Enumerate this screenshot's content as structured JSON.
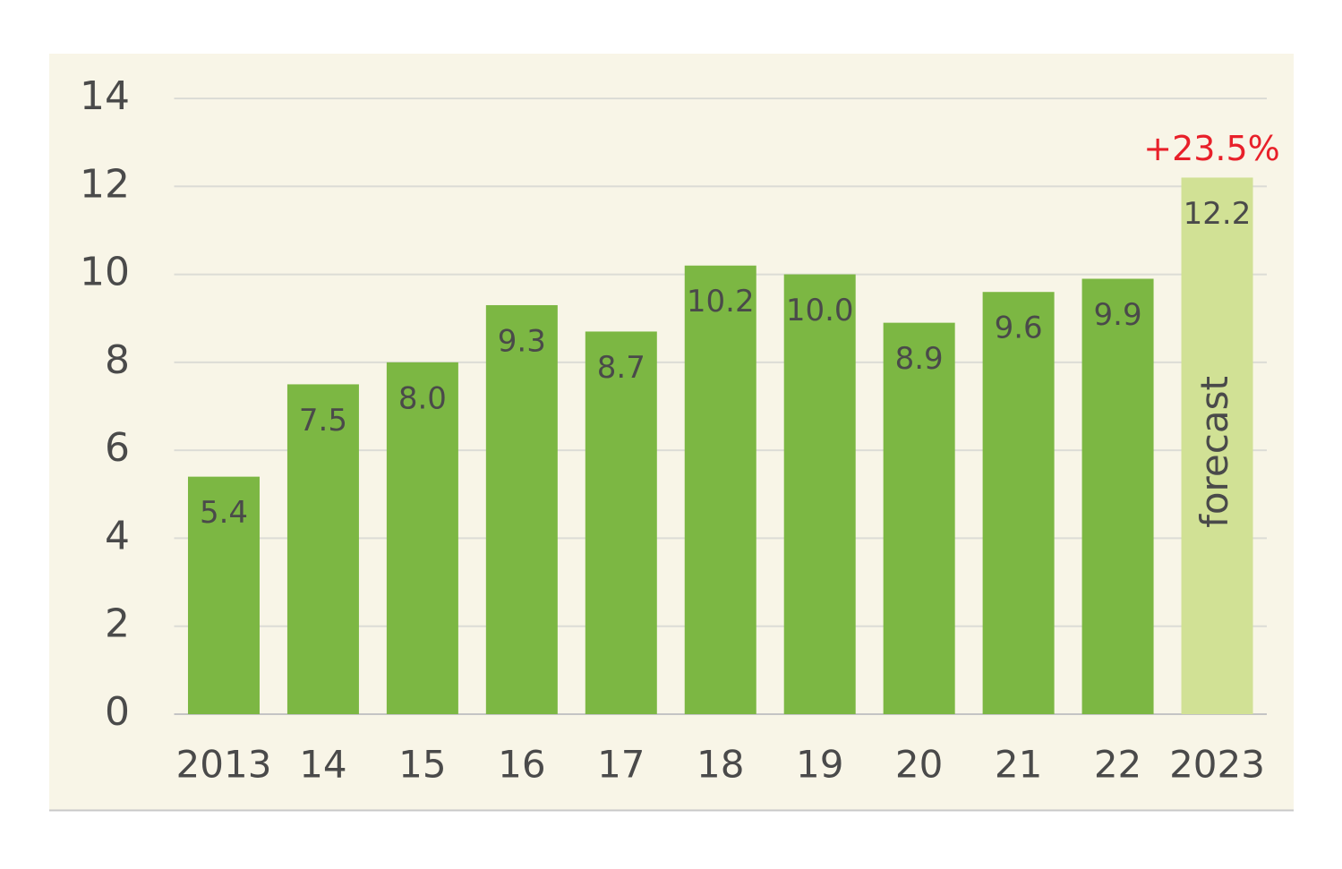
{
  "chart_data": {
    "type": "bar",
    "categories": [
      "2013",
      "14",
      "15",
      "16",
      "17",
      "18",
      "19",
      "20",
      "21",
      "22",
      "2023"
    ],
    "values": [
      5.4,
      7.5,
      8.0,
      9.3,
      8.7,
      10.2,
      10.0,
      8.9,
      9.6,
      9.9,
      12.2
    ],
    "value_labels": [
      "5.4",
      "7.5",
      "8.0",
      "9.3",
      "8.7",
      "10.2",
      "10.0",
      "8.9",
      "9.6",
      "9.9",
      "12.2"
    ],
    "colors": [
      "#7cb743",
      "#7cb743",
      "#7cb743",
      "#7cb743",
      "#7cb743",
      "#7cb743",
      "#7cb743",
      "#7cb743",
      "#7cb743",
      "#7cb743",
      "#d1e195"
    ],
    "ylim": [
      0,
      14
    ],
    "yticks": [
      0,
      2,
      4,
      6,
      8,
      10,
      12,
      14
    ],
    "grid": true,
    "annotations": [
      "forecast",
      "+23.5%"
    ]
  }
}
